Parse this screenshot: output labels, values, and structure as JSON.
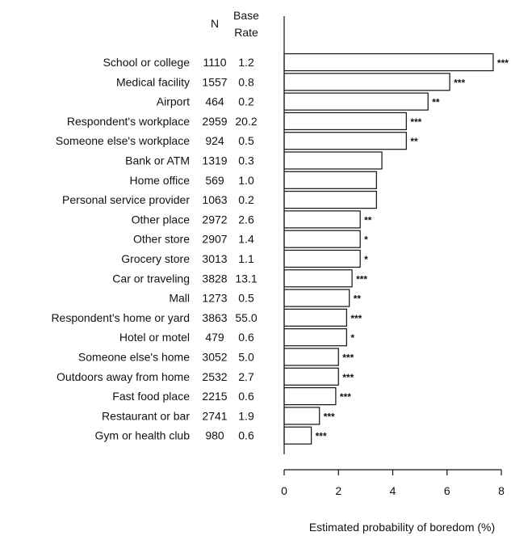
{
  "chart_data": {
    "type": "bar",
    "orientation": "horizontal",
    "title": "",
    "xlabel": "Estimated probability of boredom (%)",
    "xlim": [
      0,
      8
    ],
    "xticks": [
      0,
      2,
      4,
      6,
      8
    ],
    "grid": false,
    "column_headers": {
      "n": "N",
      "base_rate_line1": "Base",
      "base_rate_line2": "Rate"
    },
    "categories": [
      "School or college",
      "Medical facility",
      "Airport",
      "Respondent's workplace",
      "Someone else's workplace",
      "Bank or ATM",
      "Home office",
      "Personal service provider",
      "Other place",
      "Other store",
      "Grocery store",
      "Car or traveling",
      "Mall",
      "Respondent's home or yard",
      "Hotel or motel",
      "Someone else's home",
      "Outdoors away from home",
      "Fast food place",
      "Restaurant or bar",
      "Gym or health club"
    ],
    "n": [
      "1110",
      "1557",
      "464",
      "2959",
      "924",
      "1319",
      "569",
      "1063",
      "2972",
      "2907",
      "3013",
      "3828",
      "1273",
      "3863",
      "479",
      "3052",
      "2532",
      "2215",
      "2741",
      "980"
    ],
    "base_rate": [
      "1.2",
      "0.8",
      "0.2",
      "20.2",
      "0.5",
      "0.3",
      "1.0",
      "0.2",
      "2.6",
      "1.4",
      "1.1",
      "13.1",
      "0.5",
      "55.0",
      "0.6",
      "5.0",
      "2.7",
      "0.6",
      "1.9",
      "0.6"
    ],
    "values": [
      7.7,
      6.1,
      5.3,
      4.5,
      4.5,
      3.6,
      3.4,
      3.4,
      2.8,
      2.8,
      2.8,
      2.5,
      2.4,
      2.3,
      2.3,
      2.0,
      2.0,
      1.9,
      1.3,
      1.0
    ],
    "significance": [
      "***",
      "***",
      "**",
      "***",
      "**",
      "",
      "",
      "",
      "**",
      "*",
      "*",
      "***",
      "**",
      "***",
      "*",
      "***",
      "***",
      "***",
      "***",
      "***"
    ]
  }
}
